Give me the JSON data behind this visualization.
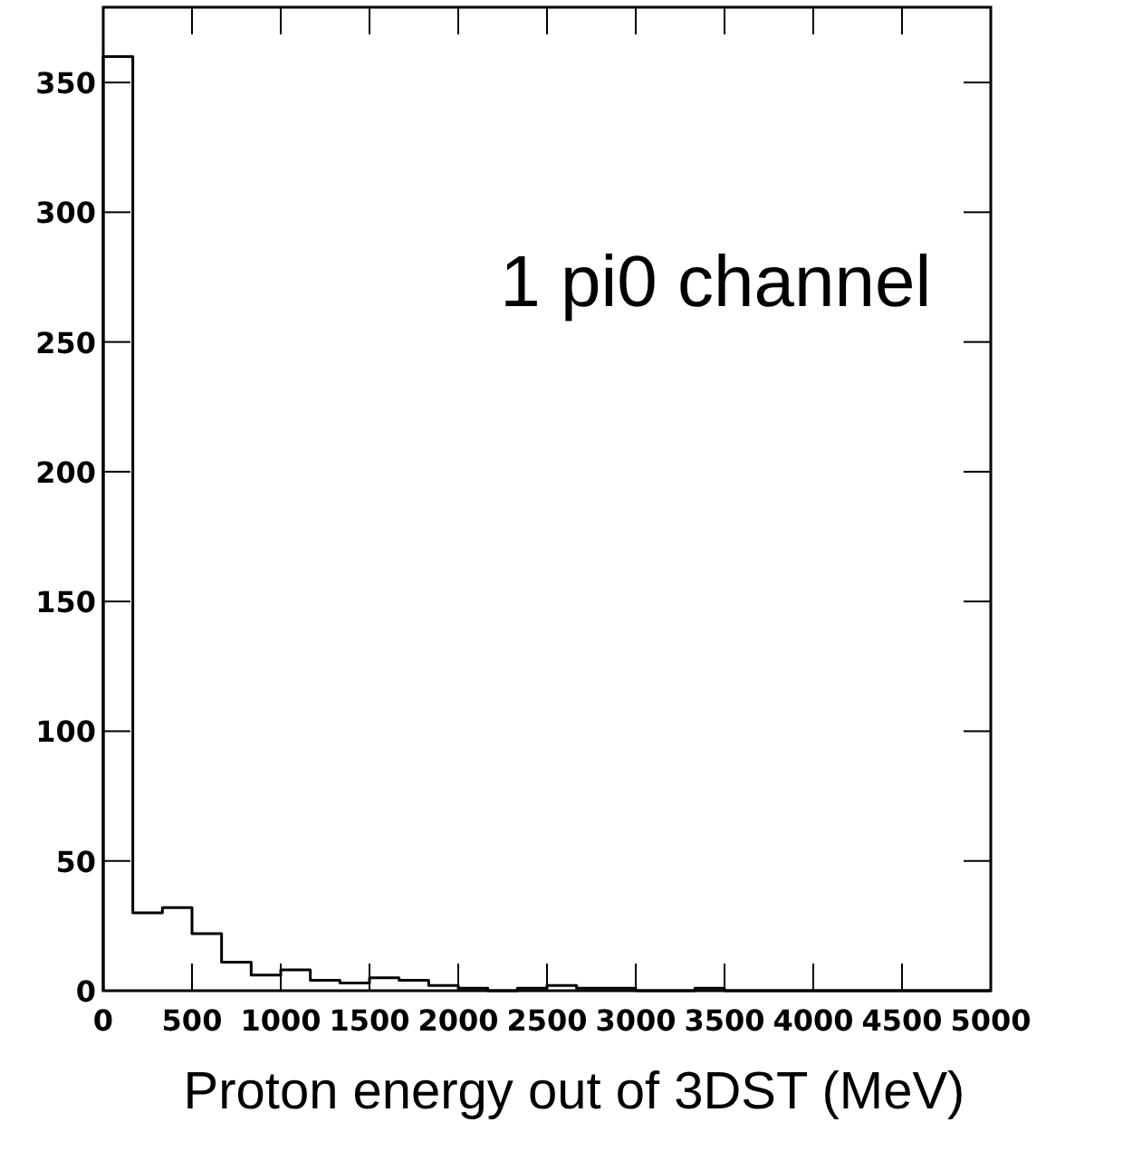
{
  "chart_data": {
    "type": "histogram",
    "xlabel": "Proton energy out of 3DST (MeV)",
    "annotations": [
      "1 pi0 channel"
    ],
    "bins": [
      0,
      166.67,
      333.33,
      500,
      666.67,
      833.33,
      1000,
      1166.67,
      1333.33,
      1500,
      1666.67,
      1833.33,
      2000,
      2166.67,
      2333.33,
      2500,
      2666.67,
      2833.33,
      3000,
      3166.67,
      3333.33,
      3500,
      3666.67,
      3833.33,
      4000,
      4166.67,
      4333.33,
      4500,
      4666.67,
      4833.33,
      5000
    ],
    "values": [
      360,
      30,
      32,
      22,
      11,
      6,
      8,
      4,
      3,
      5,
      4,
      2,
      1,
      0,
      1,
      2,
      1,
      1,
      0,
      0,
      1,
      0,
      0,
      0,
      0,
      0,
      0,
      0,
      0,
      0
    ],
    "color": "#000000",
    "xlim": [
      0,
      5000
    ],
    "ylim": [
      0,
      379
    ],
    "xticks": [
      0,
      500,
      1000,
      1500,
      2000,
      2500,
      3000,
      3500,
      4000,
      4500,
      5000
    ],
    "yticks": [
      0,
      50,
      100,
      150,
      200,
      250,
      300,
      350
    ],
    "grid": false
  }
}
